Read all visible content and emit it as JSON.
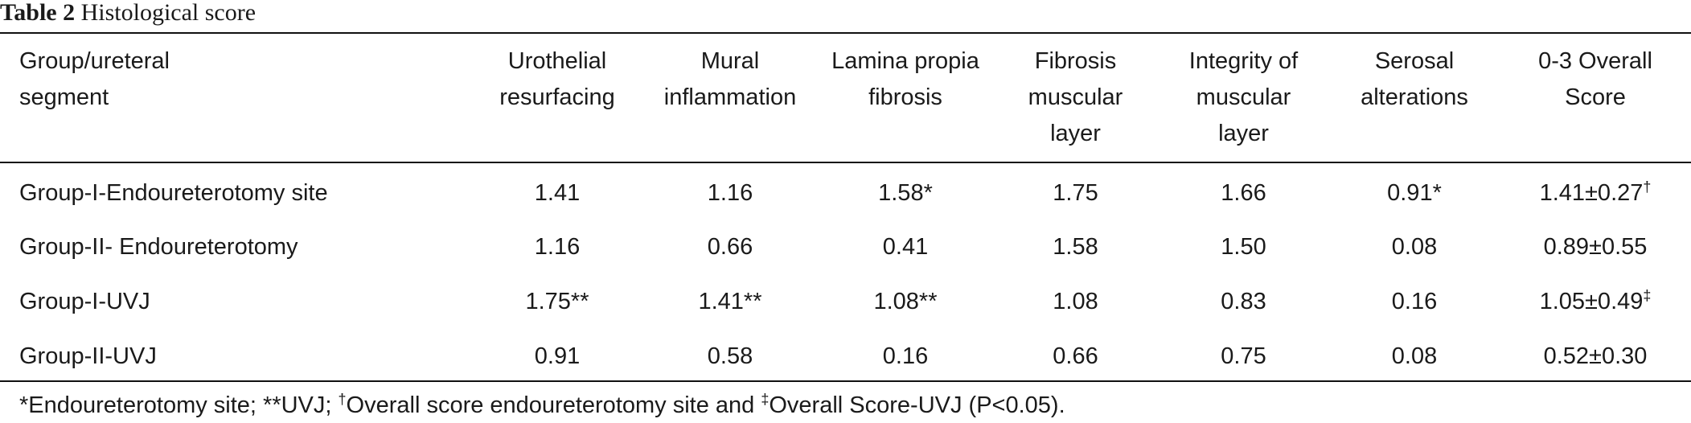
{
  "caption": {
    "label": "Table 2",
    "title": "Histological score"
  },
  "table": {
    "headers": [
      [
        "Group/ureteral",
        "segment"
      ],
      [
        "Urothelial",
        "resurfacing"
      ],
      [
        "Mural",
        "inflammation"
      ],
      [
        "Lamina propia",
        "fibrosis"
      ],
      [
        "Fibrosis",
        "muscular",
        "layer"
      ],
      [
        "Integrity of",
        "muscular",
        "layer"
      ],
      [
        "Serosal",
        "alterations"
      ],
      [
        "0-3 Overall",
        "Score"
      ]
    ],
    "rows": [
      {
        "cells": [
          "Group-I-Endoureterotomy site",
          "1.41",
          "1.16",
          "1.58*",
          "1.75",
          "1.66",
          "0.91*",
          "1.41±0.27"
        ],
        "sups": [
          "",
          "",
          "",
          "",
          "",
          "",
          "",
          "†"
        ]
      },
      {
        "cells": [
          "Group-II- Endoureterotomy",
          "1.16",
          "0.66",
          "0.41",
          "1.58",
          "1.50",
          "0.08",
          "0.89±0.55"
        ],
        "sups": [
          "",
          "",
          "",
          "",
          "",
          "",
          "",
          ""
        ]
      },
      {
        "cells": [
          "Group-I-UVJ",
          "1.75**",
          "1.41**",
          "1.08**",
          "1.08",
          "0.83",
          "0.16",
          "1.05±0.49"
        ],
        "sups": [
          "",
          "",
          "",
          "",
          "",
          "",
          "",
          "‡"
        ]
      },
      {
        "cells": [
          "Group-II-UVJ",
          "0.91",
          "0.58",
          "0.16",
          "0.66",
          "0.75",
          "0.08",
          "0.52±0.30"
        ],
        "sups": [
          "",
          "",
          "",
          "",
          "",
          "",
          "",
          ""
        ]
      }
    ]
  },
  "footnote": {
    "part1": "*Endoureterotomy site; **UVJ; ",
    "sup1": "†",
    "part2": "Overall score endoureterotomy site and ",
    "sup2": "‡",
    "part3": "Overall Score-UVJ (P<0.05)."
  }
}
